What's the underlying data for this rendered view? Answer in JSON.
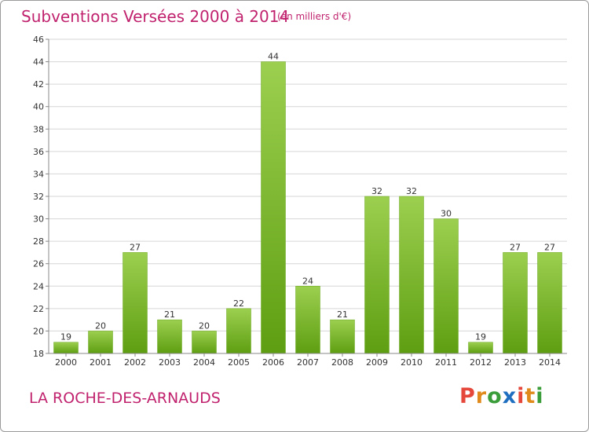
{
  "title": "Subventions Versées 2000 à 2014",
  "subtitle": "(en milliers d'€)",
  "commune": "LA ROCHE-DES-ARNAUDS",
  "logo": {
    "letters": [
      "P",
      "r",
      "o",
      "x",
      "i",
      "t",
      "i"
    ],
    "colors": [
      "#e5483a",
      "#e08a1c",
      "#3a9d3a",
      "#1f6fc0",
      "#e5483a",
      "#e08a1c",
      "#3a9d3a"
    ]
  },
  "chart_data": {
    "type": "bar",
    "categories": [
      "2000",
      "2001",
      "2002",
      "2003",
      "2004",
      "2005",
      "2006",
      "2007",
      "2008",
      "2009",
      "2010",
      "2011",
      "2012",
      "2013",
      "2014"
    ],
    "values": [
      19,
      20,
      27,
      21,
      20,
      22,
      44,
      24,
      21,
      32,
      32,
      30,
      19,
      27,
      27
    ],
    "ylim": [
      18,
      46
    ],
    "yticks": [
      18,
      20,
      22,
      24,
      26,
      28,
      30,
      32,
      34,
      36,
      38,
      40,
      42,
      44,
      46
    ],
    "grid": true,
    "bar_color": "#7cbd31"
  }
}
